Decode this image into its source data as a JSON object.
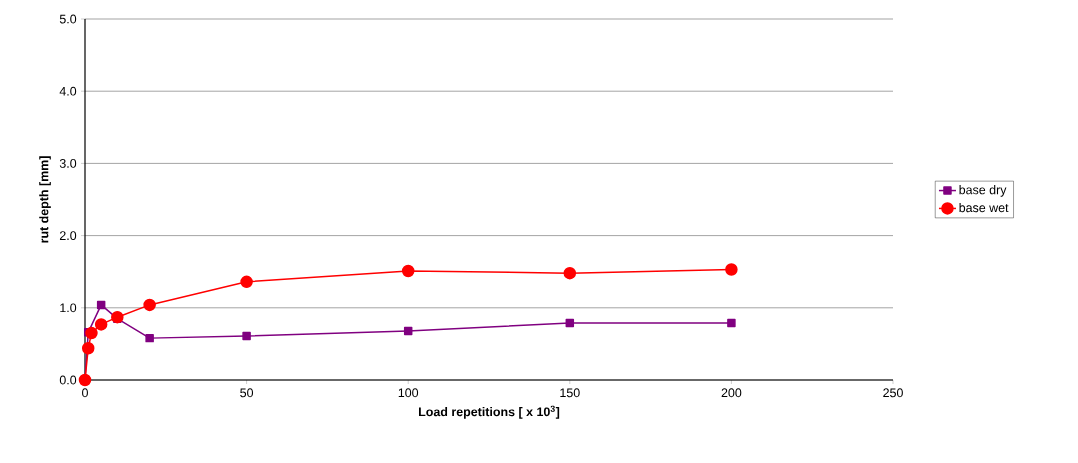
{
  "chart_data": {
    "type": "line",
    "xlabel": "Load repetitions [ x 10$^{3}$]",
    "ylabel": "rut depth [mm]",
    "xlim": [
      0,
      250
    ],
    "xticks": [
      0,
      50,
      100,
      150,
      200,
      250
    ],
    "ylim": [
      0,
      5
    ],
    "yticks": [
      {
        "value": 0,
        "label": "0.0"
      },
      {
        "value": 1,
        "label": "1.0"
      },
      {
        "value": 2,
        "label": "2.0"
      },
      {
        "value": 3,
        "label": "3.0"
      },
      {
        "value": 4,
        "label": "4.0"
      },
      {
        "value": 5,
        "label": "5.0"
      }
    ],
    "grid": "y",
    "legend": "right",
    "series": [
      {
        "name": "base dry",
        "color": "#800080",
        "marker": "square",
        "x": [
          0,
          1,
          5,
          10,
          20,
          50,
          100,
          150,
          200
        ],
        "values": [
          0,
          0.66,
          1.04,
          0.85,
          0.58,
          0.61,
          0.68,
          0.79,
          0.79
        ]
      },
      {
        "name": "base wet",
        "color": "#ff0000",
        "marker": "circle",
        "x": [
          0,
          1,
          2,
          5,
          10,
          20,
          50,
          100,
          150,
          200
        ],
        "values": [
          0,
          0.44,
          0.65,
          0.77,
          0.87,
          1.04,
          1.36,
          1.51,
          1.48,
          1.53
        ]
      }
    ]
  }
}
